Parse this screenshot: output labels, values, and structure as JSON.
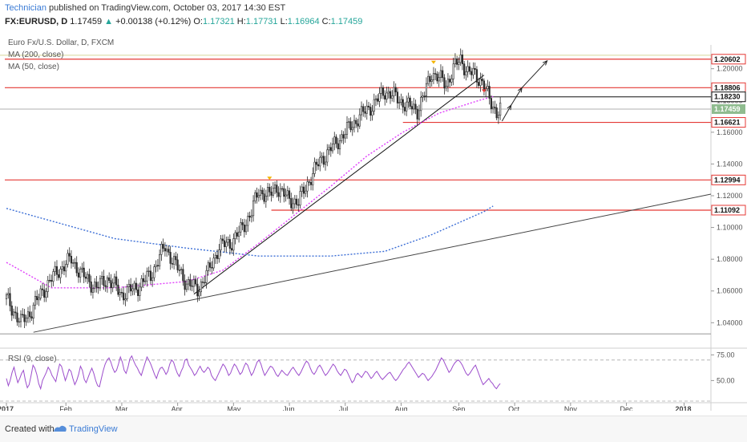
{
  "header": {
    "author": "Technician",
    "published_text": "published on TradingView.com, October 03, 2017 14:30 EST",
    "symbol": "FX:EURUSD, D",
    "last": "1.17459",
    "change_arrow": "▲",
    "change": "+0.00138 (+0.12%)",
    "ohlc": {
      "o_label": "O:",
      "o": "1.17321",
      "h_label": "H:",
      "h": "1.17731",
      "l_label": "L:",
      "l": "1.16964",
      "c_label": "C:",
      "c": "1.17459"
    }
  },
  "legend": {
    "title": "Euro Fx/U.S. Dollar, D, FXCM",
    "ma200": "MA (200, close)",
    "ma50": "MA (50, close)"
  },
  "footer": {
    "created_with": "Created with",
    "brand": "TradingView"
  },
  "colors": {
    "up": "#26a69a",
    "down": "#ef5350",
    "candle": "#2b2b2b",
    "resistance": "#e53935",
    "ma200": "#3d6fd6",
    "ma50": "#e040fb",
    "rsi": "#9c4dcc",
    "last_price_bg": "#8fbc8f"
  },
  "chart_data": [
    {
      "type": "candlestick",
      "name": "Euro Fx/U.S. Dollar, D, FXCM",
      "x_labels": [
        "2017",
        "Feb",
        "Mar",
        "Apr",
        "May",
        "Jun",
        "Jul",
        "Aug",
        "Sep",
        "Oct",
        "Nov",
        "Dec",
        "2018"
      ],
      "y_ticks": [
        1.04,
        1.06,
        1.08,
        1.1,
        1.12,
        1.14,
        1.16,
        1.18,
        1.2
      ],
      "ylim": [
        1.025,
        1.215
      ],
      "price_lines": [
        {
          "label": "1.20602",
          "value": 1.20602,
          "kind": "resistance"
        },
        {
          "label": "1.18806",
          "value": 1.18806,
          "kind": "resistance"
        },
        {
          "label": "1.18230",
          "value": 1.1823,
          "kind": "level"
        },
        {
          "label": "1.17459",
          "value": 1.17459,
          "kind": "last"
        },
        {
          "label": "1.16621",
          "value": 1.16621,
          "kind": "resistance"
        },
        {
          "label": "1.12994",
          "value": 1.12994,
          "kind": "resistance"
        },
        {
          "label": "1.11092",
          "value": 1.11092,
          "kind": "resistance"
        }
      ],
      "path_points": [
        [
          0,
          1.055
        ],
        [
          8,
          1.04
        ],
        [
          14,
          1.048
        ],
        [
          20,
          1.06
        ],
        [
          28,
          1.072
        ],
        [
          36,
          1.08
        ],
        [
          42,
          1.07
        ],
        [
          50,
          1.062
        ],
        [
          56,
          1.068
        ],
        [
          64,
          1.058
        ],
        [
          72,
          1.062
        ],
        [
          80,
          1.07
        ],
        [
          88,
          1.088
        ],
        [
          94,
          1.076
        ],
        [
          100,
          1.065
        ],
        [
          106,
          1.061
        ],
        [
          112,
          1.072
        ],
        [
          118,
          1.088
        ],
        [
          124,
          1.09
        ],
        [
          130,
          1.098
        ],
        [
          136,
          1.11
        ],
        [
          140,
          1.123
        ],
        [
          146,
          1.12
        ],
        [
          150,
          1.126
        ],
        [
          156,
          1.118
        ],
        [
          162,
          1.116
        ],
        [
          168,
          1.13
        ],
        [
          174,
          1.142
        ],
        [
          182,
          1.152
        ],
        [
          188,
          1.16
        ],
        [
          196,
          1.17
        ],
        [
          204,
          1.178
        ],
        [
          210,
          1.186
        ],
        [
          216,
          1.182
        ],
        [
          222,
          1.177
        ],
        [
          228,
          1.174
        ],
        [
          232,
          1.184
        ],
        [
          236,
          1.198
        ],
        [
          240,
          1.194
        ],
        [
          244,
          1.19
        ],
        [
          248,
          1.2
        ],
        [
          252,
          1.206
        ],
        [
          256,
          1.198
        ],
        [
          260,
          1.196
        ],
        [
          264,
          1.192
        ],
        [
          268,
          1.18
        ],
        [
          272,
          1.173
        ],
        [
          274,
          1.1746
        ]
      ],
      "ma200_points": [
        [
          0,
          1.112
        ],
        [
          60,
          1.093
        ],
        [
          100,
          1.087
        ],
        [
          140,
          1.082
        ],
        [
          180,
          1.082
        ],
        [
          210,
          1.085
        ],
        [
          235,
          1.095
        ],
        [
          265,
          1.11
        ],
        [
          270,
          1.1135
        ]
      ],
      "ma50_points": [
        [
          0,
          1.078
        ],
        [
          25,
          1.062
        ],
        [
          60,
          1.062
        ],
        [
          100,
          1.066
        ],
        [
          120,
          1.073
        ],
        [
          140,
          1.09
        ],
        [
          160,
          1.108
        ],
        [
          180,
          1.126
        ],
        [
          200,
          1.145
        ],
        [
          220,
          1.16
        ],
        [
          240,
          1.172
        ],
        [
          262,
          1.18
        ],
        [
          270,
          1.1825
        ]
      ]
    },
    {
      "type": "line",
      "name": "RSI (9, close)",
      "y_ticks": [
        50.0,
        75.0
      ],
      "ylim": [
        30,
        80
      ],
      "bands": [
        70,
        30
      ],
      "y_values": [
        52,
        45,
        50,
        58,
        63,
        55,
        48,
        52,
        57,
        60,
        50,
        43,
        46,
        55,
        65,
        62,
        56,
        47,
        42,
        50,
        54,
        58,
        63,
        60,
        55,
        52,
        49,
        58,
        66,
        64,
        57,
        50,
        55,
        61,
        59,
        52,
        46,
        50,
        56,
        64,
        60,
        51,
        48,
        53,
        58,
        62,
        57,
        50,
        45,
        44,
        52,
        60,
        66,
        70,
        72,
        68,
        62,
        58,
        60,
        66,
        73,
        68,
        60,
        57,
        63,
        71,
        74,
        69,
        65,
        62,
        58,
        55,
        61,
        67,
        73,
        70,
        66,
        61,
        56,
        52,
        58,
        62,
        63,
        60,
        56,
        59,
        66,
        70,
        68,
        62,
        57,
        54,
        59,
        63,
        70,
        71,
        65,
        62,
        59,
        55,
        57,
        61,
        64,
        60,
        58,
        60,
        63,
        61,
        55,
        52,
        50,
        54,
        58,
        62,
        66,
        64,
        60,
        55,
        57,
        62,
        66,
        64,
        60,
        56,
        58,
        63,
        67,
        65,
        60,
        55,
        58,
        63,
        68,
        70,
        66,
        60,
        55,
        58,
        61,
        64,
        63,
        60,
        56,
        54,
        57,
        60,
        58,
        56,
        55,
        58,
        61,
        63,
        60,
        57,
        55,
        58,
        62,
        66,
        69,
        67,
        62,
        58,
        56,
        59,
        63,
        65,
        62,
        58,
        55,
        57,
        60,
        63,
        66,
        64,
        60,
        57,
        55,
        58,
        61,
        60,
        56,
        52,
        48,
        50,
        55,
        57,
        55,
        53,
        56,
        59,
        58,
        55,
        52,
        54,
        57,
        59,
        56,
        53,
        51,
        53,
        55,
        57,
        58,
        55,
        52,
        50,
        52,
        55,
        58,
        61,
        63,
        66,
        68,
        65,
        62,
        59,
        56,
        53,
        55,
        57,
        56,
        53,
        50,
        52,
        54,
        57,
        60,
        64,
        68,
        72,
        70,
        66,
        62,
        58,
        60,
        64,
        67,
        69,
        70,
        68,
        65,
        61,
        57,
        55,
        57,
        60,
        63,
        65,
        60,
        55,
        50,
        46,
        48,
        50,
        52,
        49,
        47,
        44,
        42,
        45,
        47
      ]
    }
  ]
}
